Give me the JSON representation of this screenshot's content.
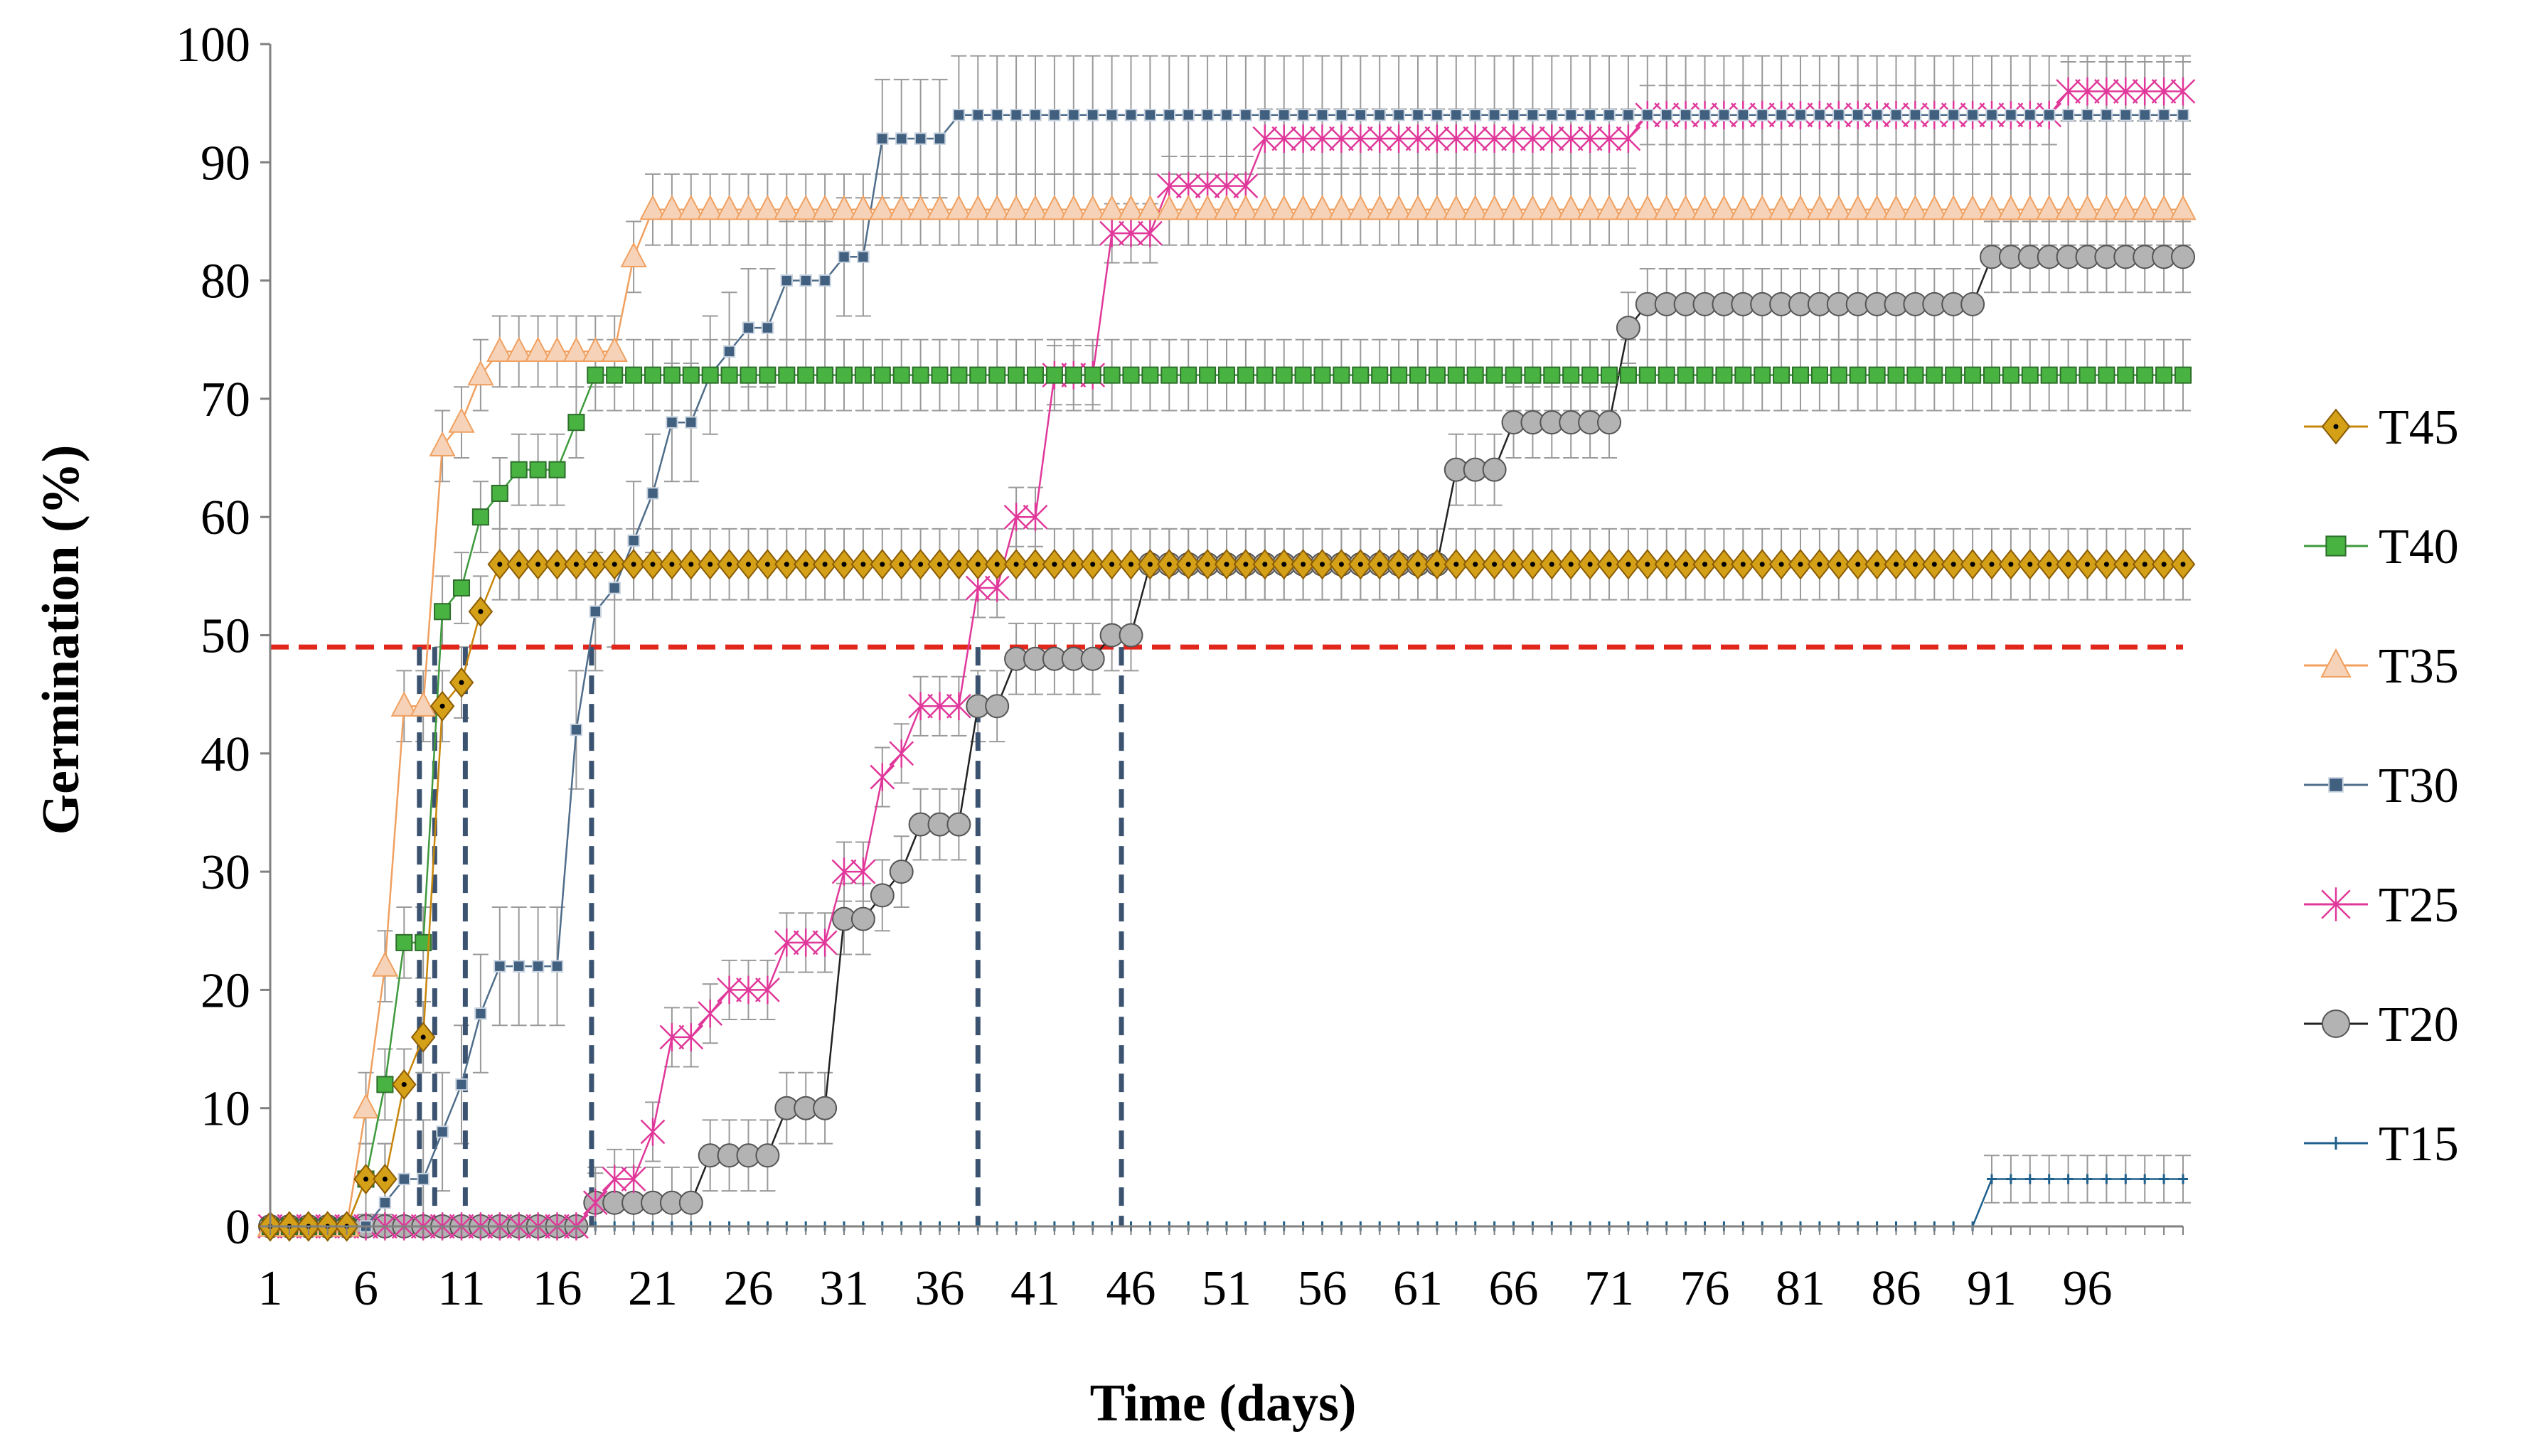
{
  "chart_data": {
    "type": "line",
    "xlabel": "Time (days)",
    "ylabel": "Germination (%)",
    "xlim": [
      1,
      101
    ],
    "ylim": [
      0,
      100
    ],
    "xticks": [
      1,
      6,
      11,
      16,
      21,
      26,
      31,
      36,
      41,
      46,
      51,
      56,
      61,
      66,
      71,
      76,
      81,
      86,
      91,
      96
    ],
    "yticks": [
      0,
      10,
      20,
      30,
      40,
      50,
      60,
      70,
      80,
      90,
      100
    ],
    "reference_line": {
      "y": 49,
      "color": "#e1261c"
    },
    "t50_markers": [
      8.8,
      9.6,
      11.2,
      17.8,
      38,
      45.5
    ],
    "series": [
      {
        "name": "T45",
        "color": "#c8860a",
        "fill": "#d4a017",
        "marker": "diamond",
        "points": [
          [
            1,
            0
          ],
          [
            2,
            0
          ],
          [
            3,
            0
          ],
          [
            4,
            0
          ],
          [
            5,
            0
          ],
          [
            6,
            4
          ],
          [
            7,
            4
          ],
          [
            8,
            12
          ],
          [
            9,
            16
          ],
          [
            10,
            44
          ],
          [
            11,
            46
          ],
          [
            12,
            52
          ],
          [
            13,
            56
          ],
          [
            101,
            56
          ]
        ],
        "error": 3
      },
      {
        "name": "T40",
        "color": "#3e9a3c",
        "fill": "#49b342",
        "marker": "square",
        "points": [
          [
            1,
            0
          ],
          [
            2,
            0
          ],
          [
            3,
            0
          ],
          [
            4,
            0
          ],
          [
            5,
            0
          ],
          [
            6,
            4
          ],
          [
            7,
            12
          ],
          [
            8,
            24
          ],
          [
            9,
            24
          ],
          [
            10,
            52
          ],
          [
            11,
            54
          ],
          [
            12,
            60
          ],
          [
            13,
            62
          ],
          [
            14,
            64
          ],
          [
            15,
            64
          ],
          [
            16,
            64
          ],
          [
            17,
            68
          ],
          [
            18,
            72
          ],
          [
            101,
            72
          ]
        ],
        "error": 3
      },
      {
        "name": "T35",
        "color": "#f0a060",
        "fill": "#f6d3b8",
        "marker": "triangle",
        "points": [
          [
            1,
            0
          ],
          [
            2,
            0
          ],
          [
            3,
            0
          ],
          [
            4,
            0
          ],
          [
            5,
            0
          ],
          [
            6,
            10
          ],
          [
            7,
            22
          ],
          [
            8,
            44
          ],
          [
            9,
            44
          ],
          [
            10,
            66
          ],
          [
            11,
            68
          ],
          [
            12,
            72
          ],
          [
            13,
            74
          ],
          [
            19,
            74
          ],
          [
            20,
            82
          ],
          [
            21,
            86
          ],
          [
            101,
            86
          ]
        ],
        "error": 3
      },
      {
        "name": "T30",
        "color": "#4f6d8a",
        "fill": "#41607f",
        "marker": "small-square",
        "points": [
          [
            1,
            0
          ],
          [
            2,
            0
          ],
          [
            3,
            0
          ],
          [
            4,
            0
          ],
          [
            5,
            0
          ],
          [
            6,
            0
          ],
          [
            7,
            2
          ],
          [
            8,
            4
          ],
          [
            9,
            4
          ],
          [
            10,
            8
          ],
          [
            11,
            12
          ],
          [
            12,
            18
          ],
          [
            13,
            22
          ],
          [
            16,
            22
          ],
          [
            17,
            42
          ],
          [
            18,
            52
          ],
          [
            19,
            54
          ],
          [
            20,
            58
          ],
          [
            21,
            62
          ],
          [
            22,
            68
          ],
          [
            23,
            68
          ],
          [
            24,
            72
          ],
          [
            25,
            74
          ],
          [
            26,
            76
          ],
          [
            27,
            76
          ],
          [
            28,
            80
          ],
          [
            30,
            80
          ],
          [
            31,
            82
          ],
          [
            32,
            82
          ],
          [
            33,
            92
          ],
          [
            36,
            92
          ],
          [
            37,
            94
          ],
          [
            101,
            94
          ]
        ],
        "error": 5
      },
      {
        "name": "T25",
        "color": "#e0389a",
        "fill": "#e0389a",
        "marker": "asterisk",
        "points": [
          [
            1,
            0
          ],
          [
            17,
            0
          ],
          [
            18,
            2
          ],
          [
            19,
            4
          ],
          [
            20,
            4
          ],
          [
            21,
            8
          ],
          [
            22,
            16
          ],
          [
            23,
            16
          ],
          [
            24,
            18
          ],
          [
            25,
            20
          ],
          [
            27,
            20
          ],
          [
            28,
            24
          ],
          [
            30,
            24
          ],
          [
            31,
            30
          ],
          [
            32,
            30
          ],
          [
            33,
            38
          ],
          [
            34,
            40
          ],
          [
            35,
            44
          ],
          [
            37,
            44
          ],
          [
            38,
            54
          ],
          [
            39,
            54
          ],
          [
            40,
            60
          ],
          [
            41,
            60
          ],
          [
            42,
            72
          ],
          [
            44,
            72
          ],
          [
            45,
            84
          ],
          [
            47,
            84
          ],
          [
            48,
            88
          ],
          [
            52,
            88
          ],
          [
            53,
            92
          ],
          [
            72,
            92
          ],
          [
            73,
            94
          ],
          [
            94,
            94
          ],
          [
            95,
            96
          ],
          [
            101,
            96
          ]
        ],
        "error": 2.5
      },
      {
        "name": "T20",
        "color": "#222222",
        "fill": "#b3b3b3",
        "marker": "circle",
        "points": [
          [
            1,
            0
          ],
          [
            17,
            0
          ],
          [
            18,
            2
          ],
          [
            23,
            2
          ],
          [
            24,
            6
          ],
          [
            27,
            6
          ],
          [
            28,
            10
          ],
          [
            30,
            10
          ],
          [
            31,
            26
          ],
          [
            32,
            26
          ],
          [
            33,
            28
          ],
          [
            34,
            30
          ],
          [
            35,
            34
          ],
          [
            37,
            34
          ],
          [
            38,
            44
          ],
          [
            39,
            44
          ],
          [
            40,
            48
          ],
          [
            44,
            48
          ],
          [
            45,
            50
          ],
          [
            46,
            50
          ],
          [
            47,
            56
          ],
          [
            62,
            56
          ],
          [
            63,
            64
          ],
          [
            65,
            64
          ],
          [
            66,
            68
          ],
          [
            71,
            68
          ],
          [
            72,
            76
          ],
          [
            73,
            78
          ],
          [
            90,
            78
          ],
          [
            91,
            82
          ],
          [
            101,
            82
          ]
        ],
        "error": 3
      },
      {
        "name": "T15",
        "color": "#1f5f8b",
        "fill": "#1f5f8b",
        "marker": "plus",
        "points": [
          [
            1,
            0
          ],
          [
            90,
            0
          ],
          [
            91,
            4
          ],
          [
            101,
            4
          ]
        ],
        "error": 2
      }
    ]
  }
}
